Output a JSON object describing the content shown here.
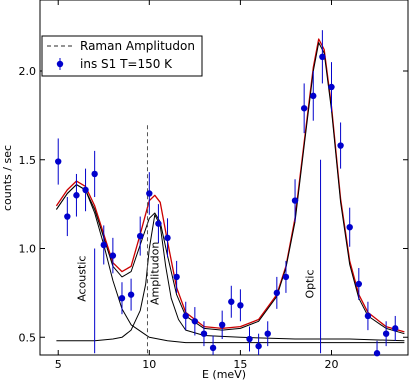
{
  "chart_data": {
    "type": "scatter",
    "title": "",
    "xlabel": "E (meV)",
    "ylabel": "counts / sec",
    "xlim": [
      4,
      24.2
    ],
    "ylim": [
      0.4,
      2.4
    ],
    "xticks": [
      5,
      10,
      15,
      20
    ],
    "yticks": [
      0.5,
      1.0,
      1.5,
      2.0
    ],
    "xtick_labels": [
      "5",
      "10",
      "15",
      "20"
    ],
    "ytick_labels": [
      "0.5",
      "1.0",
      "1.5",
      "2.0"
    ],
    "grid": false,
    "legend_position": "top-left",
    "legend": [
      {
        "label": "Raman Amplitudon",
        "style": "dashed-line",
        "color": "#555555"
      },
      {
        "label": "ins S1 T=150 K",
        "style": "marker-errorbar",
        "color": "#0000cc"
      }
    ],
    "series": [
      {
        "name": "ins S1 T=150 K",
        "kind": "errorbar",
        "color": "#0000cc",
        "x": [
          5.0,
          5.5,
          6.0,
          6.5,
          7.0,
          7.5,
          8.0,
          8.5,
          9.0,
          9.5,
          10.0,
          10.5,
          11.0,
          11.5,
          12.0,
          12.5,
          13.0,
          13.5,
          14.0,
          14.5,
          15.0,
          15.5,
          16.0,
          16.5,
          17.0,
          17.5,
          18.0,
          18.5,
          19.0,
          19.5,
          20.0,
          20.5,
          21.0,
          21.5,
          22.0,
          22.5,
          23.0,
          23.5
        ],
        "y": [
          1.49,
          1.18,
          1.3,
          1.33,
          1.42,
          1.02,
          0.96,
          0.72,
          0.74,
          1.07,
          1.31,
          1.14,
          1.06,
          0.84,
          0.62,
          0.59,
          0.52,
          0.44,
          0.57,
          0.7,
          0.68,
          0.49,
          0.45,
          0.52,
          0.75,
          0.84,
          1.27,
          1.79,
          1.86,
          2.08,
          1.91,
          1.58,
          1.12,
          0.8,
          0.62,
          0.41,
          0.52,
          0.55
        ],
        "yerr": [
          0.13,
          0.11,
          0.12,
          0.12,
          0.13,
          0.11,
          0.1,
          0.09,
          0.09,
          0.11,
          0.12,
          0.11,
          0.11,
          0.09,
          0.08,
          0.08,
          0.07,
          0.07,
          0.08,
          0.09,
          0.09,
          0.07,
          0.07,
          0.07,
          0.09,
          0.09,
          0.12,
          0.14,
          0.14,
          0.15,
          0.14,
          0.13,
          0.11,
          0.09,
          0.08,
          0.07,
          0.07,
          0.07
        ]
      },
      {
        "name": "",
        "kind": "line",
        "color": "#cc0000",
        "x": [
          4.9,
          5.5,
          6.0,
          6.5,
          7.0,
          7.5,
          8.0,
          8.5,
          9.0,
          9.5,
          10.0,
          10.3,
          10.6,
          11.0,
          11.5,
          12.0,
          13.0,
          14.0,
          15.0,
          16.0,
          17.0,
          17.5,
          18.0,
          18.5,
          19.0,
          19.3,
          19.6,
          20.0,
          20.5,
          21.0,
          21.5,
          22.0,
          23.0,
          24.0
        ],
        "y": [
          1.24,
          1.33,
          1.38,
          1.35,
          1.24,
          1.08,
          0.92,
          0.87,
          0.9,
          1.08,
          1.27,
          1.3,
          1.26,
          1.04,
          0.78,
          0.64,
          0.56,
          0.55,
          0.56,
          0.6,
          0.74,
          0.9,
          1.17,
          1.6,
          2.02,
          2.18,
          2.12,
          1.8,
          1.28,
          0.93,
          0.74,
          0.64,
          0.56,
          0.53
        ]
      },
      {
        "name": "",
        "kind": "line",
        "color": "#000000",
        "x": [
          4.9,
          5.5,
          6.0,
          6.5,
          7.0,
          7.5,
          8.0,
          8.5,
          9.0,
          9.5,
          10.0,
          10.3,
          10.6,
          11.0,
          11.5,
          12.0,
          13.0,
          14.0,
          15.0,
          16.0,
          17.0,
          17.5,
          18.0,
          18.5,
          19.0,
          19.3,
          19.6,
          20.0,
          20.5,
          21.0,
          21.5,
          22.0,
          23.0,
          24.0
        ],
        "y": [
          1.22,
          1.31,
          1.36,
          1.33,
          1.22,
          1.06,
          0.9,
          0.84,
          0.87,
          1.02,
          1.17,
          1.2,
          1.15,
          0.96,
          0.74,
          0.62,
          0.55,
          0.54,
          0.55,
          0.59,
          0.73,
          0.89,
          1.15,
          1.58,
          2.0,
          2.16,
          2.1,
          1.78,
          1.26,
          0.91,
          0.72,
          0.62,
          0.55,
          0.52
        ]
      },
      {
        "name": "",
        "kind": "line",
        "color": "#000000",
        "x": [
          4.9,
          5.5,
          6.0,
          6.5,
          7.0,
          7.5,
          8.0,
          8.5,
          9.0,
          10.0,
          11.0,
          12.0,
          14.0,
          17.0,
          20.0,
          24.0
        ],
        "y": [
          1.22,
          1.31,
          1.36,
          1.33,
          1.2,
          1.02,
          0.82,
          0.66,
          0.57,
          0.5,
          0.48,
          0.47,
          0.47,
          0.47,
          0.47,
          0.47
        ]
      },
      {
        "name": "",
        "kind": "line",
        "color": "#000000",
        "x": [
          4.9,
          6.0,
          7.0,
          8.0,
          8.5,
          9.0,
          9.5,
          9.8,
          10.0,
          10.3,
          10.6,
          10.9,
          11.2,
          11.6,
          12.0,
          13.0,
          15.0,
          18.0,
          21.0,
          24.0
        ],
        "y": [
          0.48,
          0.48,
          0.48,
          0.49,
          0.5,
          0.54,
          0.65,
          0.8,
          1.0,
          1.19,
          1.13,
          0.9,
          0.72,
          0.6,
          0.54,
          0.51,
          0.5,
          0.49,
          0.49,
          0.48
        ]
      }
    ],
    "vlines": [
      {
        "x": 7.0,
        "y0": 0.41,
        "y1": 1.0,
        "color": "#0000cc",
        "style": "solid"
      },
      {
        "x": 19.4,
        "y0": 0.41,
        "y1": 1.5,
        "color": "#0000cc",
        "style": "solid"
      },
      {
        "x": 9.9,
        "y0": 0.41,
        "y1": 1.7,
        "color": "#555555",
        "style": "dashed"
      }
    ],
    "annotations": [
      {
        "text": "Acoustic",
        "x": 6.5,
        "y": 0.83
      },
      {
        "text": "Amplitudon",
        "x": 10.5,
        "y": 0.86
      },
      {
        "text": "Optic",
        "x": 19.0,
        "y": 0.8
      }
    ]
  }
}
